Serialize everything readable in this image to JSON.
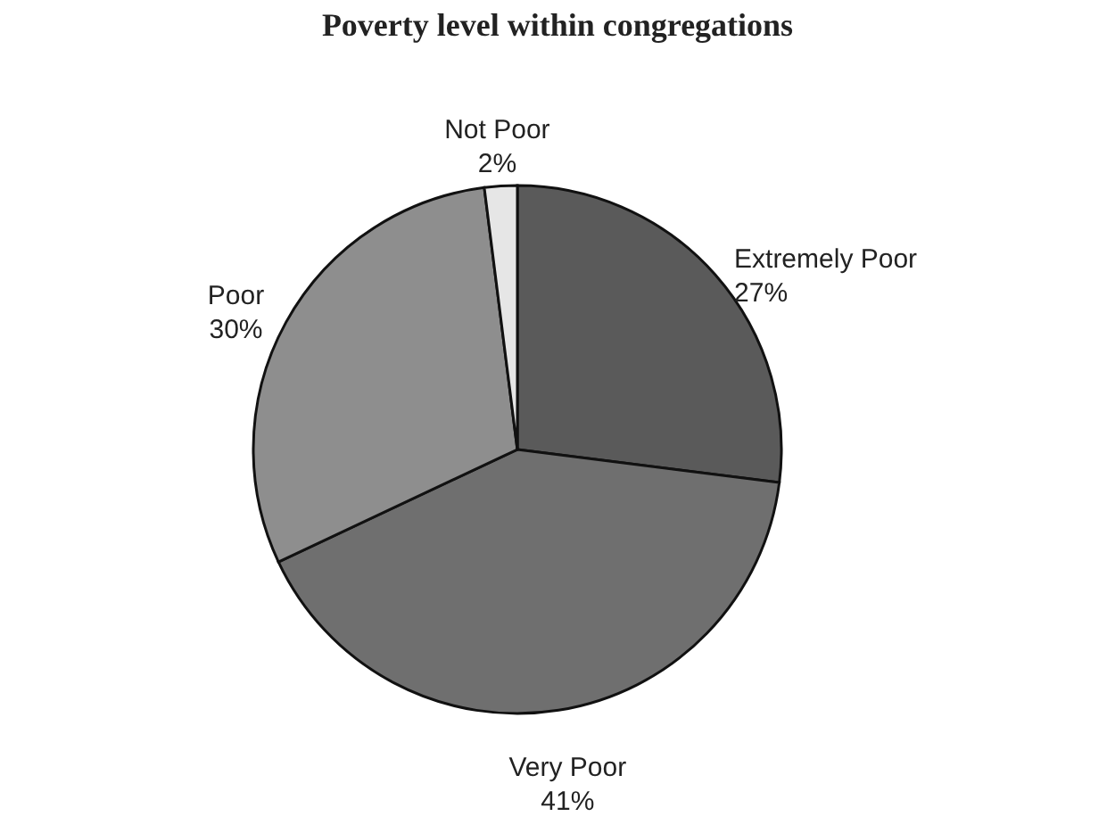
{
  "chart_data": {
    "type": "pie",
    "title": "Poverty level within congregations",
    "categories": [
      "Extremely Poor",
      "Very Poor",
      "Poor",
      "Not Poor"
    ],
    "values": [
      27,
      41,
      30,
      2
    ],
    "value_labels": [
      "27%",
      "41%",
      "30%",
      "2%"
    ],
    "colors": [
      "#5a5a5a",
      "#6f6f6f",
      "#8e8e8e",
      "#e6e6e6"
    ],
    "legend": false
  }
}
